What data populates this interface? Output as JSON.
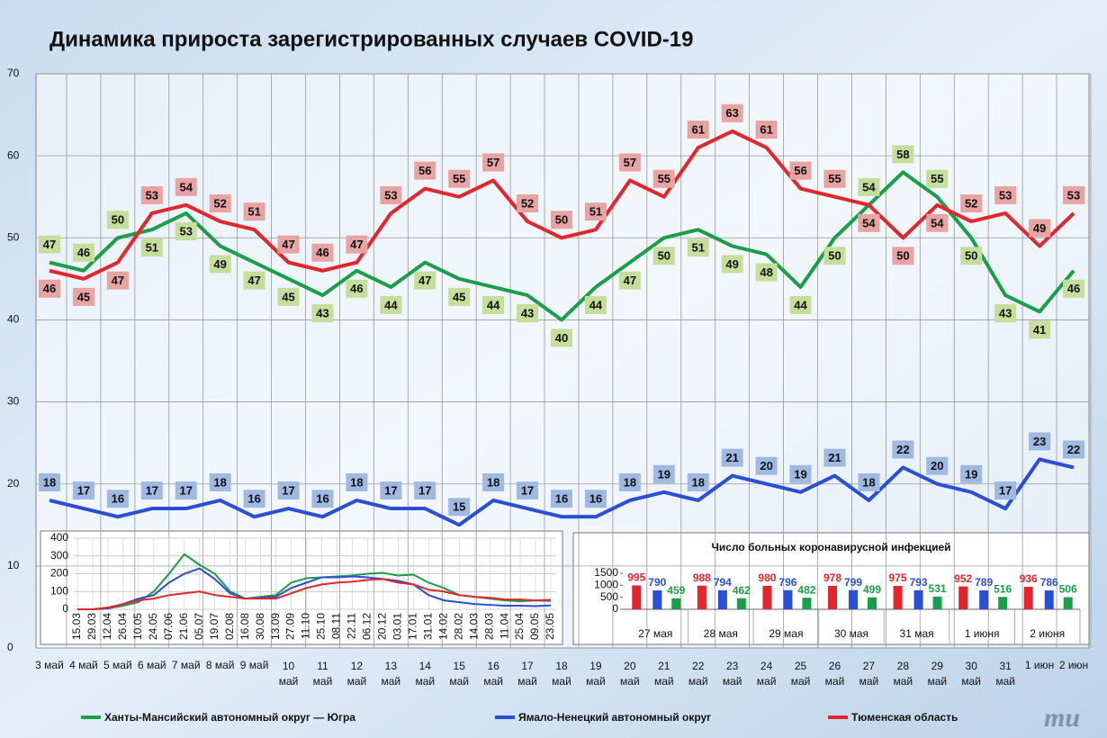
{
  "title": "Динамика прироста зарегистрированных случаев COVID-19",
  "logo": "mu",
  "chart_data": [
    {
      "type": "line",
      "categories": [
        "3 май",
        "4 май",
        "5 май",
        "6 май",
        "7 май",
        "8 май",
        "9 май",
        "10 май",
        "11 май",
        "12 май",
        "13 май",
        "14 май",
        "15 май",
        "16 май",
        "17 май",
        "18 май",
        "19 май",
        "20 май",
        "21 май",
        "22 май",
        "23 май",
        "24 май",
        "25 май",
        "26 май",
        "27 май",
        "28 май",
        "29 май",
        "30 май",
        "31 май",
        "1 июн",
        "2 июн"
      ],
      "ylim": [
        0,
        70
      ],
      "yticks": [
        0,
        10,
        20,
        30,
        40,
        50,
        60,
        70
      ],
      "grid": true,
      "series": [
        {
          "name": "Ханты-Мансийский автономный округ — Югра",
          "color": "#1a9e4a",
          "label_color": "#c6de9c",
          "values": [
            47,
            46,
            50,
            51,
            53,
            49,
            47,
            45,
            43,
            46,
            44,
            47,
            45,
            44,
            43,
            40,
            44,
            47,
            50,
            51,
            49,
            48,
            44,
            50,
            54,
            58,
            55,
            50,
            43,
            41,
            46
          ]
        },
        {
          "name": "Ямало-Ненецкий автономный округ",
          "color": "#2a4fd6",
          "label_color": "#9fb9e2",
          "values": [
            18,
            17,
            16,
            17,
            17,
            18,
            16,
            17,
            16,
            18,
            17,
            17,
            15,
            18,
            17,
            16,
            16,
            18,
            19,
            18,
            21,
            20,
            19,
            21,
            18,
            22,
            20,
            19,
            17,
            23,
            22
          ]
        },
        {
          "name": "Тюменская область",
          "color": "#e3262b",
          "label_color": "#e8a3a3",
          "values": [
            46,
            45,
            47,
            53,
            54,
            52,
            51,
            47,
            46,
            47,
            53,
            56,
            55,
            57,
            52,
            50,
            51,
            57,
            55,
            61,
            63,
            61,
            56,
            55,
            54,
            50,
            54,
            52,
            53,
            49,
            53
          ]
        }
      ]
    },
    {
      "type": "line",
      "categories": [
        "15.03",
        "29.03",
        "12.04",
        "26.04",
        "10.05",
        "24.05",
        "07.06",
        "21.06",
        "05.07",
        "19.07",
        "02.08",
        "16.08",
        "30.08",
        "13.09",
        "27.09",
        "11.10",
        "25.10",
        "08.11",
        "22.11",
        "06.12",
        "20.12",
        "03.01",
        "17.01",
        "31.01",
        "14.02",
        "28.02",
        "14.03",
        "28.03",
        "11.04",
        "25.04",
        "09.05",
        "23.05"
      ],
      "ylim": [
        0,
        400
      ],
      "yticks": [
        0,
        100,
        200,
        300,
        400
      ],
      "grid": true,
      "series": [
        {
          "color": "#1a9e4a",
          "values": [
            0,
            0,
            5,
            20,
            40,
            100,
            200,
            310,
            250,
            200,
            100,
            60,
            70,
            80,
            150,
            175,
            180,
            185,
            190,
            200,
            205,
            190,
            195,
            150,
            120,
            80,
            70,
            60,
            50,
            45,
            50,
            47
          ]
        },
        {
          "color": "#2a4fd6",
          "values": [
            0,
            0,
            5,
            30,
            60,
            80,
            150,
            200,
            230,
            170,
            90,
            60,
            65,
            70,
            120,
            150,
            180,
            180,
            185,
            180,
            170,
            160,
            140,
            80,
            50,
            40,
            30,
            25,
            20,
            20,
            18,
            22
          ]
        },
        {
          "color": "#e3262b",
          "values": [
            0,
            0,
            10,
            30,
            50,
            60,
            80,
            90,
            100,
            80,
            70,
            60,
            60,
            60,
            90,
            120,
            140,
            150,
            155,
            165,
            170,
            150,
            140,
            110,
            100,
            80,
            70,
            65,
            55,
            55,
            50,
            53
          ]
        }
      ]
    },
    {
      "type": "bar",
      "title": "Число больных коронавирусной инфекцией",
      "categories": [
        "27 мая",
        "28 мая",
        "29 мая",
        "30 мая",
        "31 мая",
        "1 июня",
        "2 июня"
      ],
      "ylim": [
        0,
        1500
      ],
      "yticks": [
        0,
        500,
        1000,
        1500
      ],
      "series": [
        {
          "color": "#e3262b",
          "values": [
            995,
            988,
            980,
            978,
            975,
            952,
            936
          ]
        },
        {
          "color": "#2a4fd6",
          "values": [
            790,
            794,
            796,
            799,
            793,
            789,
            786
          ]
        },
        {
          "color": "#1a9e4a",
          "values": [
            459,
            462,
            482,
            499,
            531,
            516,
            506
          ]
        }
      ]
    }
  ]
}
